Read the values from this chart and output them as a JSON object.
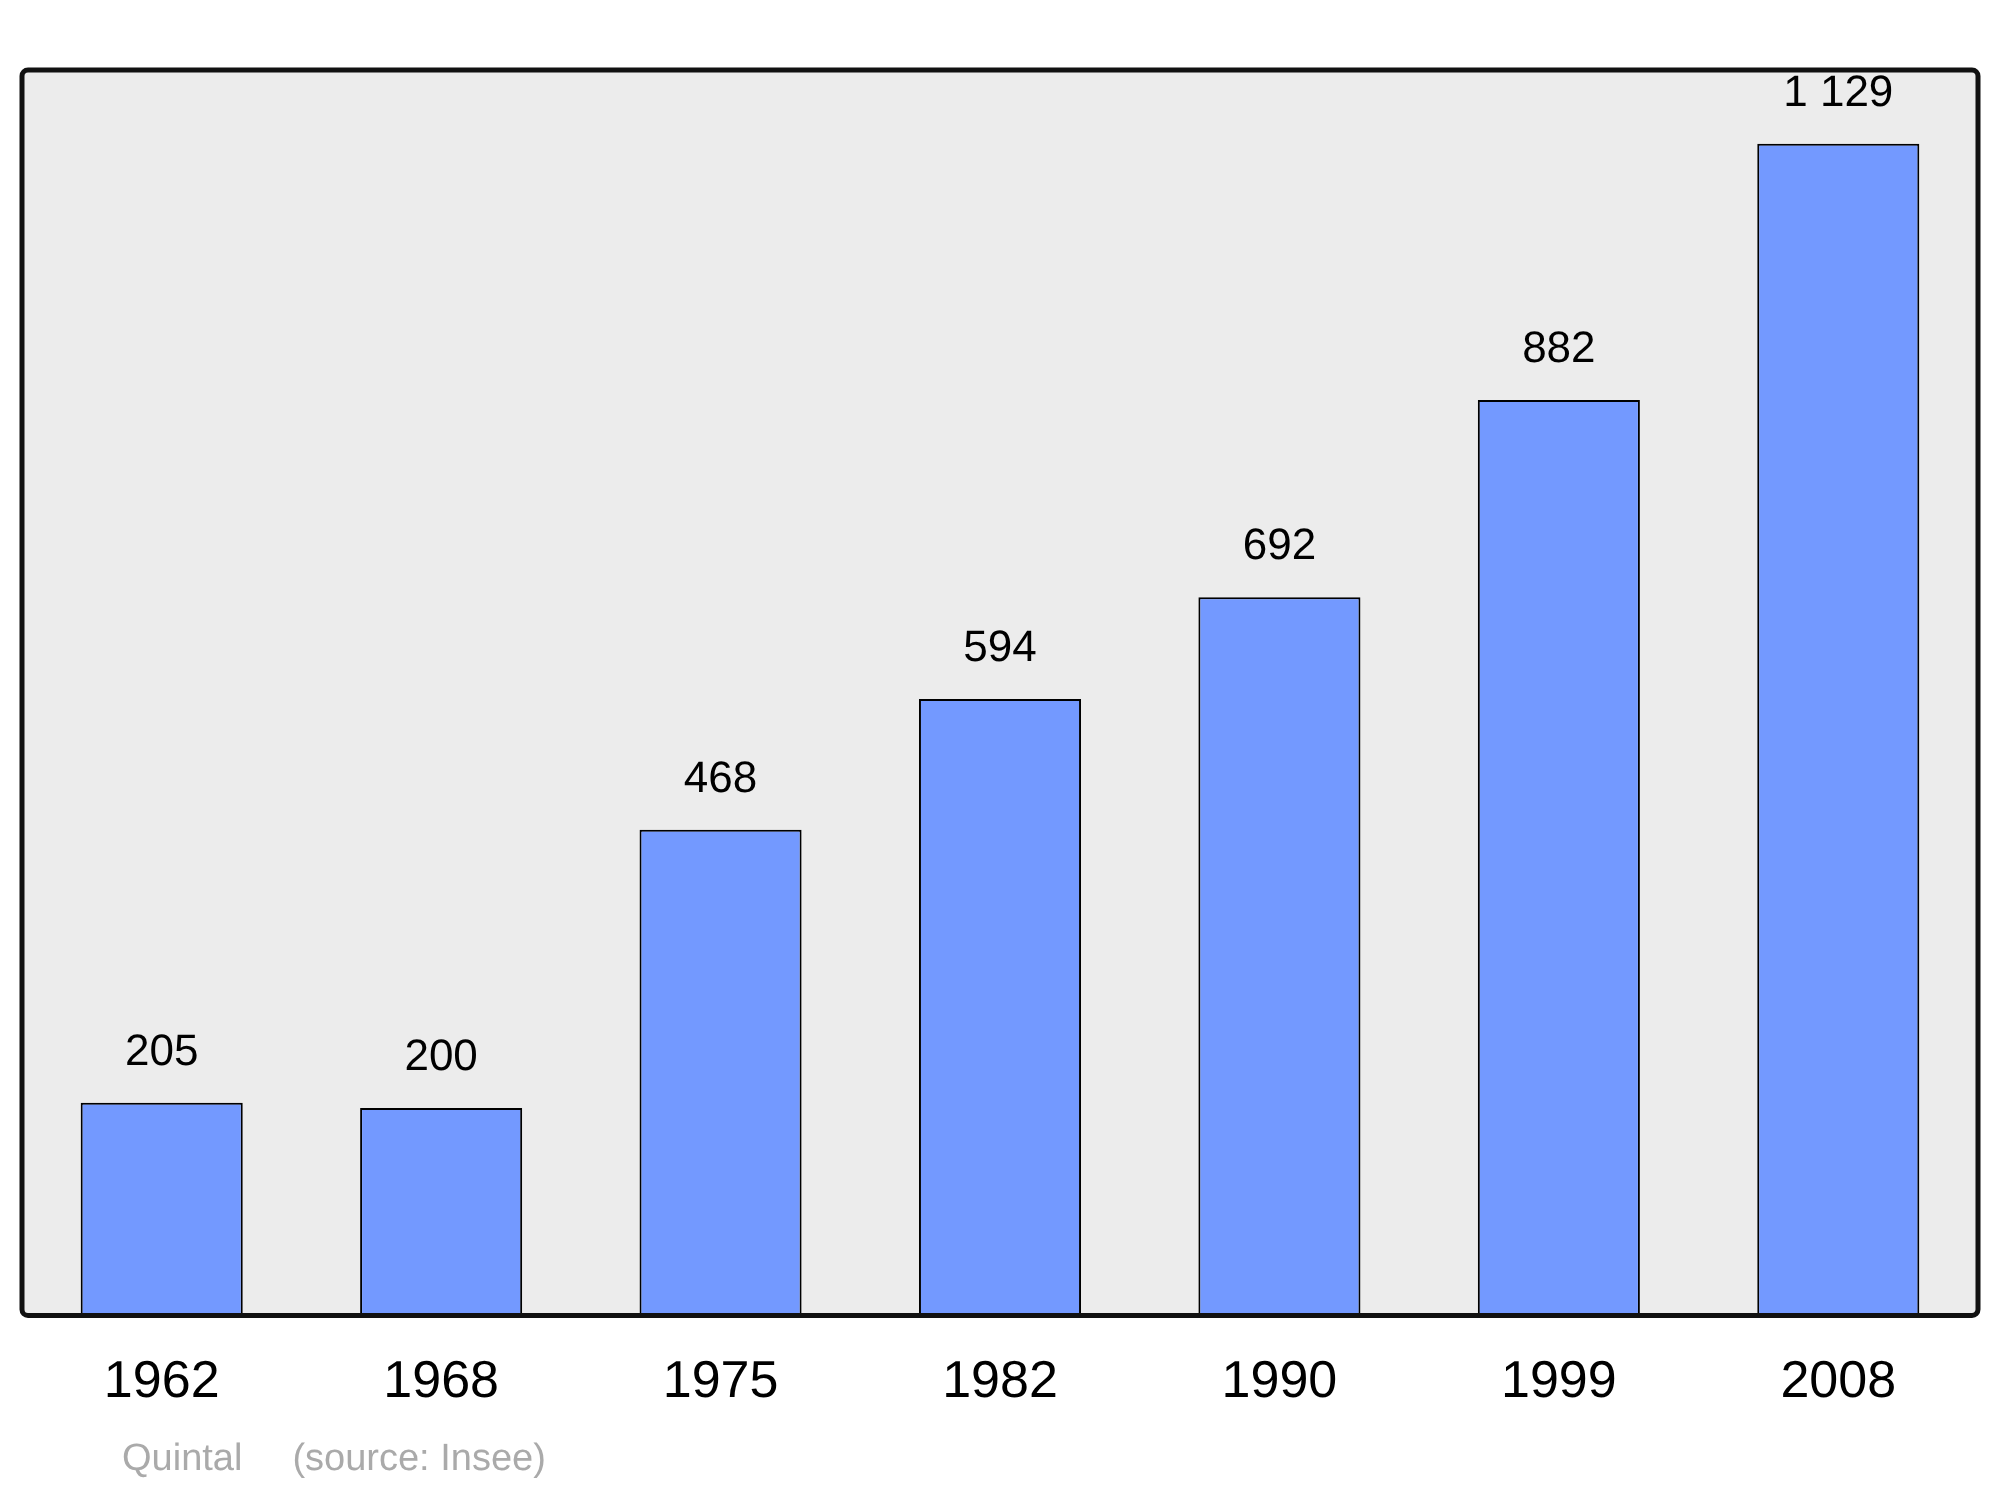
{
  "chart_data": {
    "type": "bar",
    "categories": [
      "1962",
      "1968",
      "1975",
      "1982",
      "1990",
      "1999",
      "2008"
    ],
    "values": [
      205,
      200,
      468,
      594,
      692,
      882,
      1129
    ],
    "value_labels": [
      "205",
      "200",
      "468",
      "594",
      "692",
      "882",
      "1 129"
    ],
    "color": "#7399ff",
    "annotations": [
      "Quintal",
      "(source: Insee)"
    ],
    "grid": false,
    "legend": false
  }
}
